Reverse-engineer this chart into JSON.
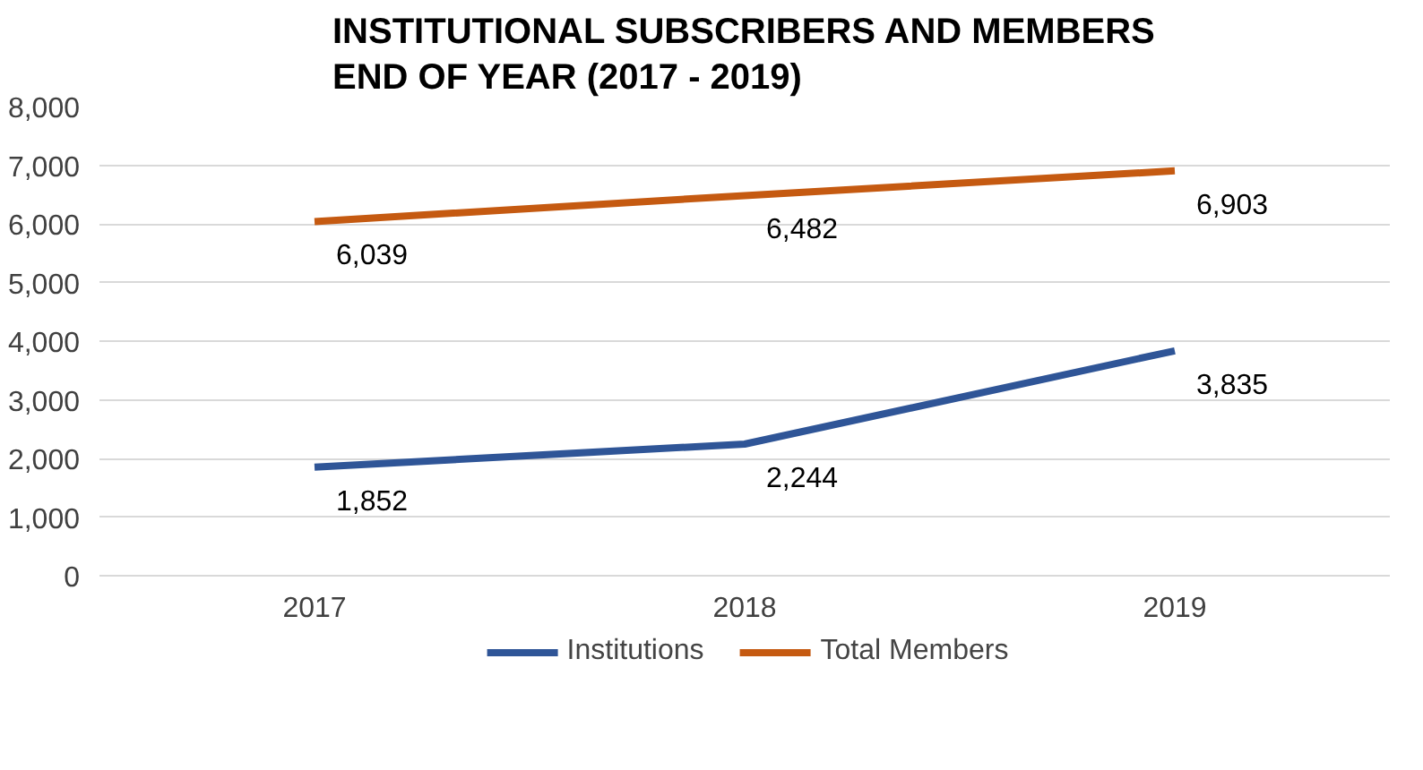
{
  "chart_data": {
    "type": "line",
    "title": "INSTITUTIONAL SUBSCRIBERS AND MEMBERS\nEND OF YEAR (2017 - 2019)",
    "categories": [
      "2017",
      "2018",
      "2019"
    ],
    "series": [
      {
        "name": "Institutions",
        "color": "#2f5597",
        "values": [
          1852,
          2244,
          3835
        ],
        "value_labels": [
          "1,852",
          "2,244",
          "3,835"
        ]
      },
      {
        "name": "Total Members",
        "color": "#c55a11",
        "values": [
          6039,
          6482,
          6903
        ],
        "value_labels": [
          "6,039",
          "6,482",
          "6,903"
        ]
      }
    ],
    "ylim": [
      0,
      8000
    ],
    "yticks": [
      {
        "value": 0,
        "label": "0"
      },
      {
        "value": 1000,
        "label": "1,000"
      },
      {
        "value": 2000,
        "label": "2,000"
      },
      {
        "value": 3000,
        "label": "3,000"
      },
      {
        "value": 4000,
        "label": "4,000"
      },
      {
        "value": 5000,
        "label": "5,000"
      },
      {
        "value": 6000,
        "label": "6,000"
      },
      {
        "value": 7000,
        "label": "7,000"
      },
      {
        "value": 8000,
        "label": "8,000"
      }
    ],
    "grid": "y",
    "legend": "bottom",
    "marker": "none",
    "line_style": "solid"
  }
}
